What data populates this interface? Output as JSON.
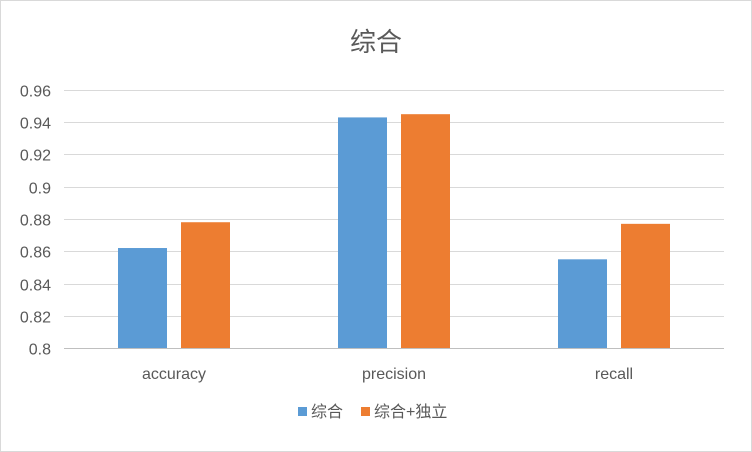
{
  "chart_data": {
    "type": "bar",
    "title": "综合",
    "categories": [
      "accuracy",
      "precision",
      "recall"
    ],
    "series": [
      {
        "name": "综合",
        "values": [
          0.862,
          0.943,
          0.855
        ],
        "color": "#5b9bd5"
      },
      {
        "name": "综合+独立",
        "values": [
          0.878,
          0.945,
          0.877
        ],
        "color": "#ed7d31"
      }
    ],
    "ylim": [
      0.8,
      0.96
    ],
    "yticks": [
      0.8,
      0.82,
      0.84,
      0.86,
      0.88,
      0.9,
      0.92,
      0.94,
      0.96
    ],
    "ytick_labels": [
      "0.8",
      "0.82",
      "0.84",
      "0.86",
      "0.88",
      "0.9",
      "0.92",
      "0.94",
      "0.96"
    ],
    "xlabel": "",
    "ylabel": "",
    "grid": true,
    "legend_position": "bottom"
  }
}
